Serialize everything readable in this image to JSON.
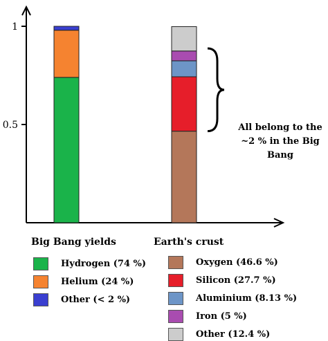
{
  "chart_data": {
    "type": "bar",
    "stacked": true,
    "categories": [
      "Big Bang yields",
      "Earth's crust"
    ],
    "ylim": [
      0,
      1
    ],
    "yticks": [
      "0.5",
      "1"
    ],
    "series_groups": [
      {
        "name": "Big Bang yields",
        "segments": [
          {
            "name": "Hydrogen",
            "label": "Hydrogen  (74 %)",
            "value": 0.74,
            "color": "#1ab34a"
          },
          {
            "name": "Helium",
            "label": "Helium  (24 %)",
            "value": 0.24,
            "color": "#f58330"
          },
          {
            "name": "Other",
            "label": "Other (< 2 %)",
            "value": 0.02,
            "color": "#3a3fd0"
          }
        ]
      },
      {
        "name": "Earth's crust",
        "segments": [
          {
            "name": "Oxygen",
            "label": "Oxygen (46.6 %)",
            "value": 0.466,
            "color": "#b4775a"
          },
          {
            "name": "Silicon",
            "label": "Silicon (27.7 %)",
            "value": 0.277,
            "color": "#e61e2a"
          },
          {
            "name": "Aluminium",
            "label": "Aluminium (8.13 %)",
            "value": 0.0813,
            "color": "#6d95c7"
          },
          {
            "name": "Iron",
            "label": "Iron (5 %)",
            "value": 0.05,
            "color": "#a94cb0"
          },
          {
            "name": "Other",
            "label": "Other (12.4 %)",
            "value": 0.124,
            "color": "#cccccc"
          }
        ]
      }
    ],
    "annotation": "All belong to the ~2 % in the Big Bang"
  },
  "legend": {
    "left_title": "Big Bang yields",
    "right_title": "Earth's crust"
  }
}
